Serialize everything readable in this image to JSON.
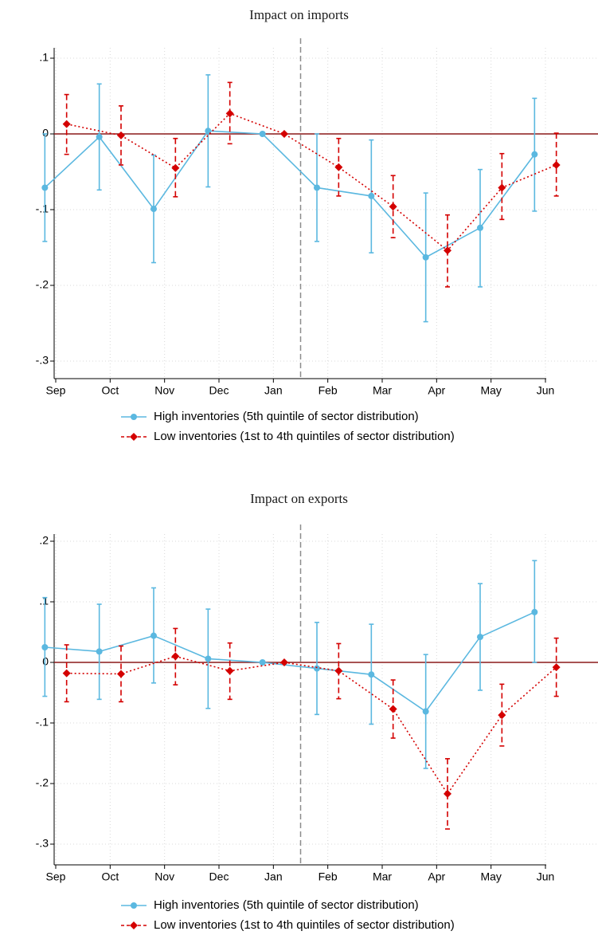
{
  "chart_data": [
    {
      "type": "line",
      "title": "Impact on imports",
      "xlabel": "",
      "ylabel": "",
      "categories": [
        "Sep",
        "Oct",
        "Nov",
        "Dec",
        "Jan",
        "Feb",
        "Mar",
        "Apr",
        "May",
        "Jun"
      ],
      "yticks": [
        ".1",
        "0",
        "-.1",
        "-.2",
        "-.3"
      ],
      "ylim": [
        -0.33,
        0.105
      ],
      "grid": true,
      "legend_position": "bottom",
      "event_line_between": [
        "Jan",
        "Feb"
      ],
      "series": [
        {
          "name": "High inventories (5th quintile of sector distribution)",
          "color": "#5bb8e0",
          "style": "solid",
          "marker": "circle",
          "x_offset": -0.2,
          "values": [
            -0.071,
            -0.004,
            -0.099,
            0.004,
            0.0,
            -0.071,
            -0.082,
            -0.163,
            -0.124,
            -0.027
          ],
          "ci_low": [
            -0.142,
            -0.074,
            -0.17,
            -0.07,
            0.0,
            -0.142,
            -0.157,
            -0.248,
            -0.202,
            -0.102
          ],
          "ci_high": [
            0.0,
            0.066,
            -0.028,
            0.078,
            0.0,
            0.0,
            -0.008,
            -0.078,
            -0.047,
            0.047
          ]
        },
        {
          "name": "Low inventories (1st to 4th quintiles of sector distribution)",
          "color": "#d40000",
          "style": "dotted",
          "marker": "diamond",
          "x_offset": 0.2,
          "values": [
            0.013,
            -0.002,
            -0.045,
            0.027,
            0.0,
            -0.044,
            -0.096,
            -0.154,
            -0.071,
            -0.041
          ],
          "ci_low": [
            -0.027,
            -0.041,
            -0.083,
            -0.013,
            0.0,
            -0.082,
            -0.137,
            -0.202,
            -0.113,
            -0.082
          ],
          "ci_high": [
            0.052,
            0.037,
            -0.006,
            0.068,
            0.0,
            -0.006,
            -0.055,
            -0.107,
            -0.026,
            0.001
          ]
        }
      ]
    },
    {
      "type": "line",
      "title": "Impact on exports",
      "xlabel": "",
      "ylabel": "",
      "categories": [
        "Sep",
        "Oct",
        "Nov",
        "Dec",
        "Jan",
        "Feb",
        "Mar",
        "Apr",
        "May",
        "Jun"
      ],
      "yticks": [
        ".2",
        ".1",
        "0",
        "-.1",
        "-.2",
        "-.3"
      ],
      "ylim": [
        -0.33,
        0.205
      ],
      "grid": true,
      "legend_position": "bottom",
      "event_line_between": [
        "Jan",
        "Feb"
      ],
      "series": [
        {
          "name": "High inventories (5th quintile of sector distribution)",
          "color": "#5bb8e0",
          "style": "solid",
          "marker": "circle",
          "x_offset": -0.2,
          "values": [
            0.025,
            0.018,
            0.044,
            0.006,
            0.0,
            -0.01,
            -0.02,
            -0.081,
            0.042,
            0.083
          ],
          "ci_low": [
            -0.056,
            -0.061,
            -0.034,
            -0.076,
            0.0,
            -0.086,
            -0.102,
            -0.175,
            -0.046,
            0.0
          ],
          "ci_high": [
            0.107,
            0.096,
            0.123,
            0.088,
            0.0,
            0.066,
            0.063,
            0.013,
            0.13,
            0.168
          ]
        },
        {
          "name": "Low inventories (1st to 4th quintiles of sector distribution)",
          "color": "#d40000",
          "style": "dotted",
          "marker": "diamond",
          "x_offset": 0.2,
          "values": [
            -0.018,
            -0.019,
            0.01,
            -0.014,
            0.0,
            -0.014,
            -0.077,
            -0.217,
            -0.087,
            -0.008
          ],
          "ci_low": [
            -0.065,
            -0.065,
            -0.037,
            -0.061,
            0.0,
            -0.06,
            -0.125,
            -0.275,
            -0.138,
            -0.056
          ],
          "ci_high": [
            0.029,
            0.027,
            0.056,
            0.032,
            0.0,
            0.031,
            -0.029,
            -0.159,
            -0.036,
            0.04
          ]
        }
      ]
    }
  ]
}
